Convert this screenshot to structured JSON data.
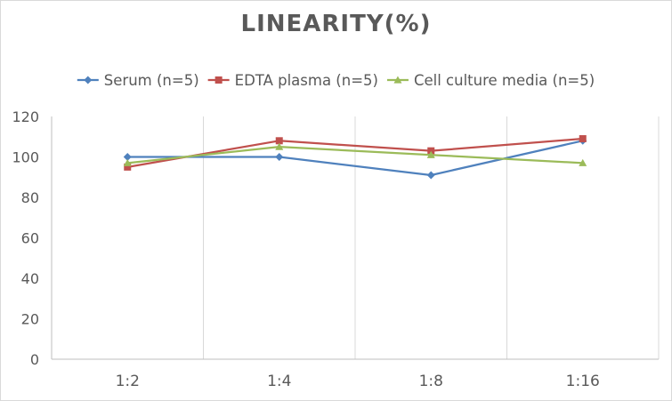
{
  "chart_data": {
    "type": "line",
    "title": "LINEARITY(%)",
    "categories": [
      "1:2",
      "1:4",
      "1:8",
      "1:16"
    ],
    "ylim": [
      0,
      120
    ],
    "yticks": [
      0,
      20,
      40,
      60,
      80,
      100,
      120
    ],
    "xlabel": "",
    "ylabel": "",
    "grid": "vertical",
    "legend_position": "top",
    "series": [
      {
        "name": "Serum (n=5)",
        "values": [
          100,
          100,
          91,
          108
        ],
        "color": "#4f81bd",
        "marker": "diamond"
      },
      {
        "name": "EDTA plasma (n=5)",
        "values": [
          95,
          108,
          103,
          109
        ],
        "color": "#c0504d",
        "marker": "square"
      },
      {
        "name": "Cell culture media (n=5)",
        "values": [
          97,
          105,
          101,
          97
        ],
        "color": "#9bbb59",
        "marker": "triangle"
      }
    ]
  }
}
